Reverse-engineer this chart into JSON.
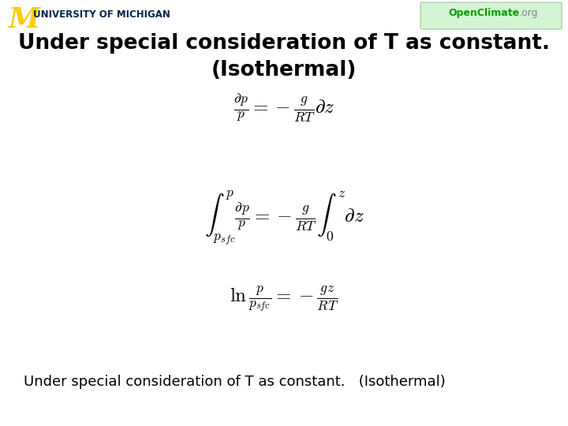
{
  "background_color": "#ffffff",
  "title_line1": "Under special consideration of T as constant.",
  "title_line2": "(Isothermal)",
  "title_fontsize": 19,
  "title_color": "#000000",
  "eq_fontsize": 16,
  "footer_text": "Under special consideration of T as constant.   (Isothermal)",
  "footer_fontsize": 13,
  "footer_color": "#000000",
  "header_univ_text": "UNIVERSITY OF MICHIGAN",
  "header_univ_color": "#00274C",
  "header_M_color": "#FFCB05",
  "openclimate_text": "OpenClimate",
  "openclimate_color": "#00a000",
  "openclimate_org_color": "#888888"
}
